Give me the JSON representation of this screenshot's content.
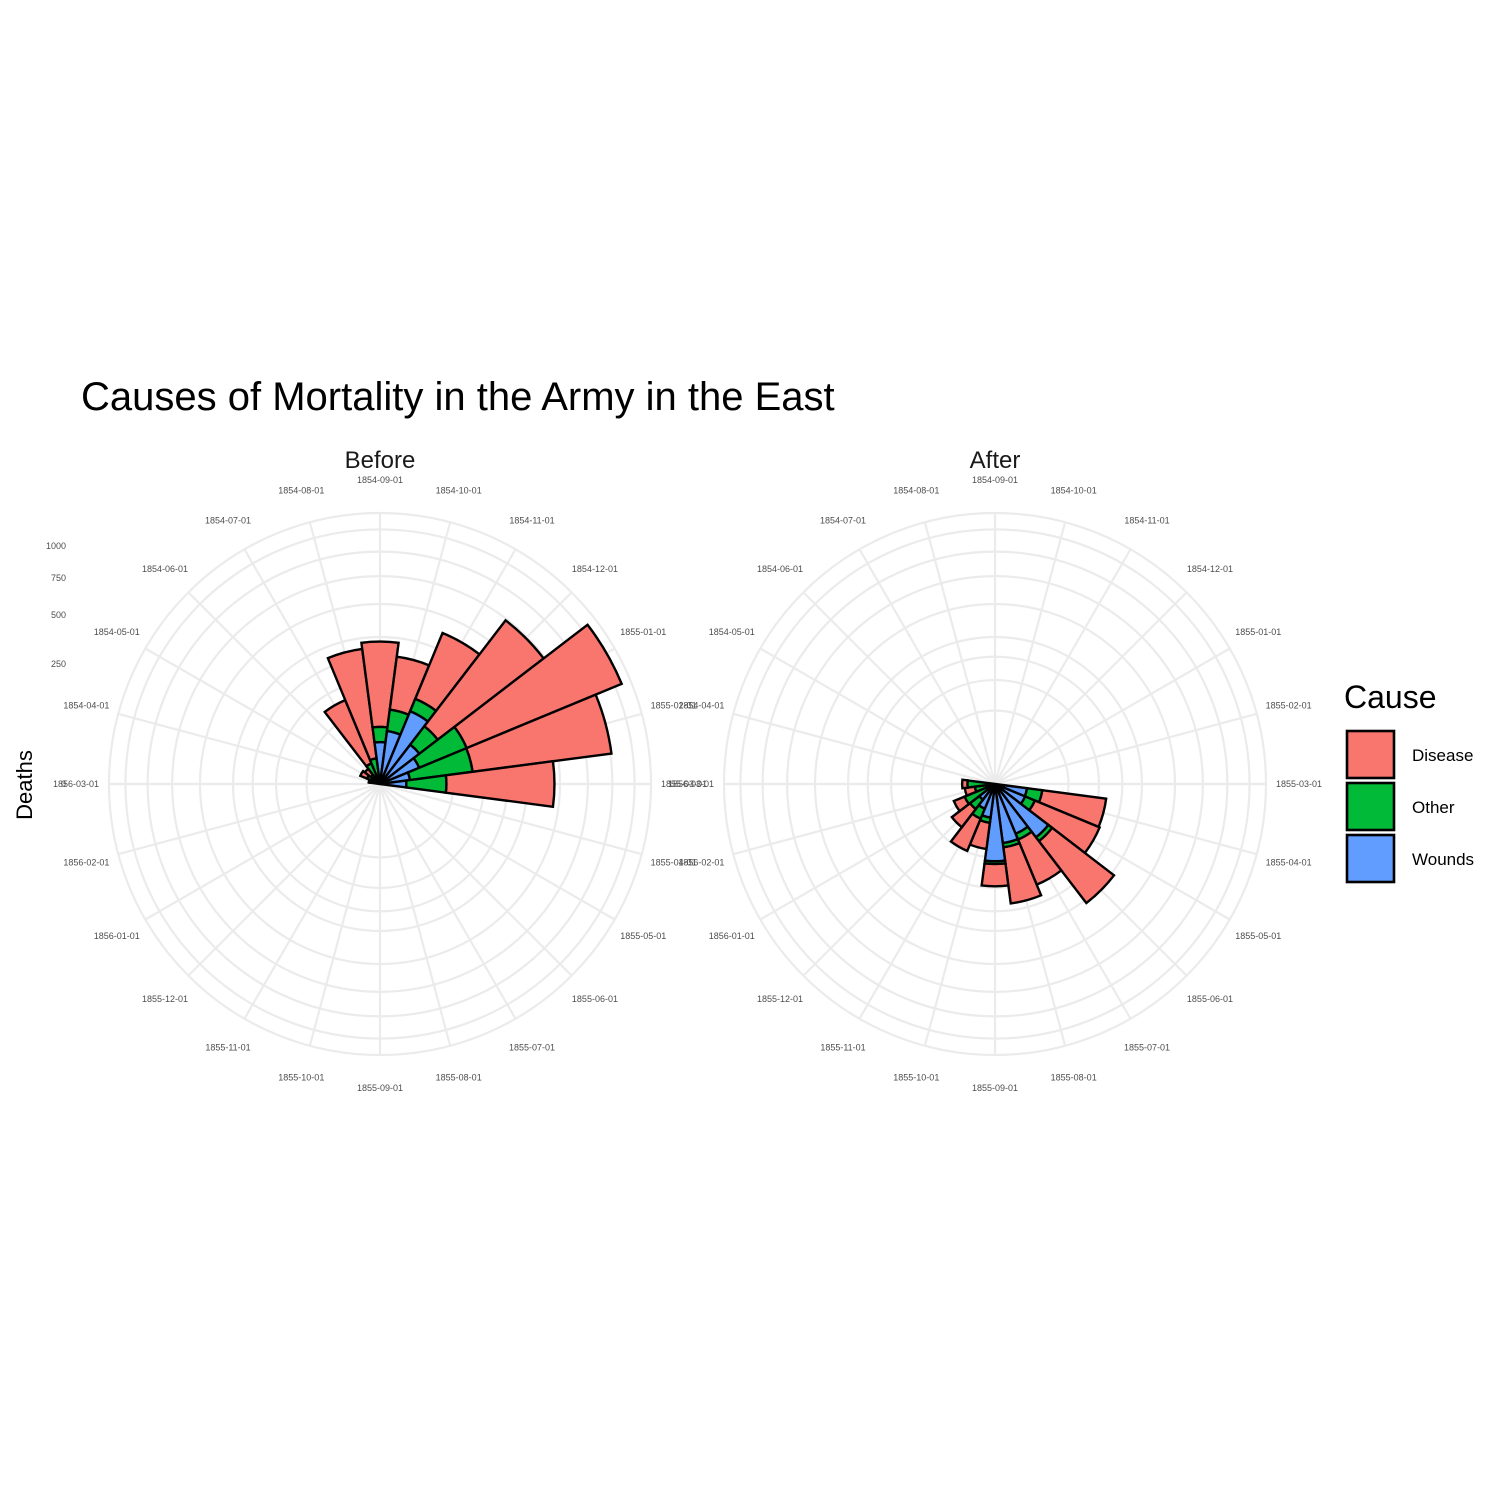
{
  "colors": {
    "Disease": "#F8766D",
    "Other": "#00BA38",
    "Wounds": "#619CFF"
  },
  "chart_data": {
    "type": "polar-bar (coxcomb)",
    "title": "Causes of Mortality in the Army in the East",
    "ylabel": "Deaths",
    "radial_scale": "sqrt",
    "radial_ticks": [
      "0",
      "250",
      "500",
      "750",
      "1000"
    ],
    "radial_tick_values": [
      0,
      250,
      500,
      750,
      1000
    ],
    "months": [
      "1854-04-01",
      "1854-05-01",
      "1854-06-01",
      "1854-07-01",
      "1854-08-01",
      "1854-09-01",
      "1854-10-01",
      "1854-11-01",
      "1854-12-01",
      "1855-01-01",
      "1855-02-01",
      "1855-03-01",
      "1855-04-01",
      "1855-05-01",
      "1855-06-01",
      "1855-07-01",
      "1855-08-01",
      "1855-09-01",
      "1855-10-01",
      "1855-11-01",
      "1855-12-01",
      "1856-01-01",
      "1856-02-01",
      "1856-03-01"
    ],
    "legend": {
      "title": "Cause",
      "entries": [
        "Disease",
        "Other",
        "Wounds"
      ],
      "position": "right"
    },
    "panels": [
      {
        "name": "Before",
        "series": [
          {
            "name": "Disease",
            "values": [
              1,
              12,
              11,
              359,
              828,
              788,
              503,
              844,
              1725,
              2761,
              2120,
              1205,
              null,
              null,
              null,
              null,
              null,
              null,
              null,
              null,
              null,
              null,
              null,
              null
            ]
          },
          {
            "name": "Other",
            "values": [
              5,
              9,
              6,
              23,
              30,
              70,
              128,
              106,
              131,
              324,
              361,
              172,
              null,
              null,
              null,
              null,
              null,
              null,
              null,
              null,
              null,
              null,
              null,
              null
            ]
          },
          {
            "name": "Wounds",
            "values": [
              0,
              0,
              0,
              0,
              1,
              81,
              132,
              287,
              114,
              83,
              42,
              32,
              null,
              null,
              null,
              null,
              null,
              null,
              null,
              null,
              null,
              null,
              null,
              null
            ]
          }
        ]
      },
      {
        "name": "After",
        "series": [
          {
            "name": "Disease",
            "values": [
              null,
              null,
              null,
              null,
              null,
              null,
              null,
              null,
              null,
              null,
              null,
              null,
              477,
              508,
              802,
              382,
              483,
              189,
              128,
              178,
              91,
              42,
              24,
              15
            ]
          },
          {
            "name": "Other",
            "values": [
              null,
              null,
              null,
              null,
              null,
              null,
              null,
              null,
              null,
              null,
              null,
              null,
              57,
              37,
              31,
              33,
              25,
              20,
              18,
              32,
              28,
              48,
              19,
              35
            ]
          },
          {
            "name": "Wounds",
            "values": [
              null,
              null,
              null,
              null,
              null,
              null,
              null,
              null,
              null,
              null,
              null,
              null,
              48,
              49,
              209,
              134,
              164,
              276,
              53,
              33,
              18,
              2,
              0,
              0
            ]
          }
        ]
      }
    ]
  }
}
